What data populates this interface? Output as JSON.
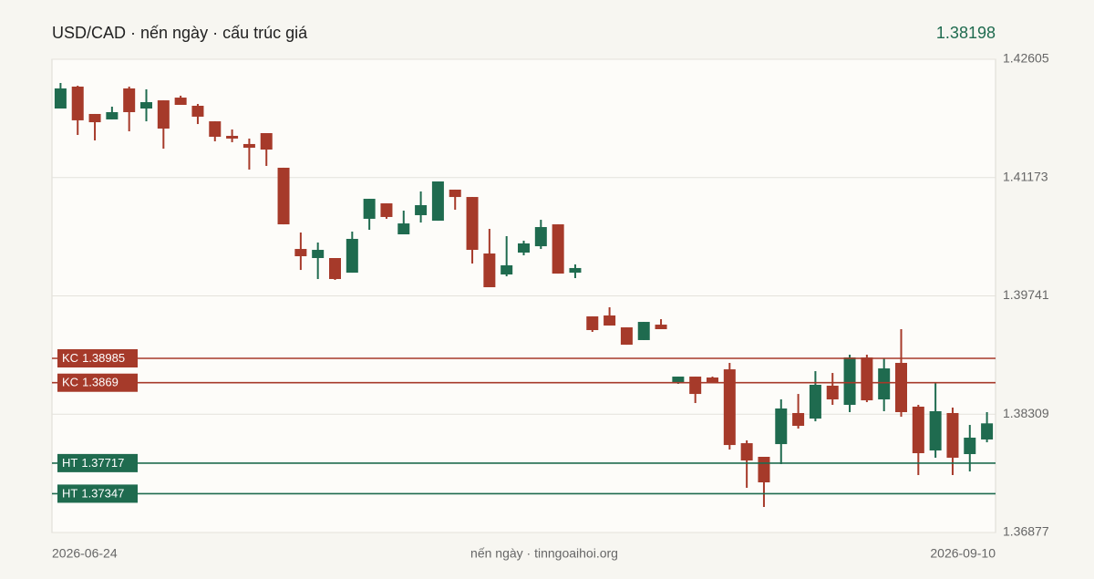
{
  "chart_data": {
    "type": "candlestick",
    "title": "USD/CAD · nến ngày · cấu trúc giá",
    "last_price": 1.38198,
    "footer": "nến ngày · tinngoaihoi.org",
    "up_color": "#1f6b4f",
    "down_color": "#a63a2a",
    "ylim": [
      1.36877,
      1.42605
    ],
    "yticks": [
      1.42605,
      1.41173,
      1.39741,
      1.38309,
      1.36877
    ],
    "grid": true,
    "categories": [
      "2026-06-24",
      null,
      null,
      null,
      null,
      null,
      null,
      null,
      null,
      null,
      null,
      null,
      null,
      null,
      null,
      null,
      null,
      null,
      null,
      null,
      null,
      null,
      null,
      null,
      null,
      null,
      null,
      null,
      null,
      null,
      null,
      null,
      null,
      null,
      null,
      null,
      null,
      null,
      null,
      null,
      null,
      null,
      null,
      null,
      null,
      null,
      null,
      null,
      null,
      null,
      null,
      null,
      null,
      null,
      "2026-09-10"
    ],
    "open": [
      1.42009,
      1.42274,
      1.41943,
      1.41877,
      1.42252,
      1.42009,
      1.42108,
      1.42141,
      1.42042,
      1.41854,
      1.41678,
      1.41579,
      1.41711,
      1.41292,
      1.40309,
      1.40199,
      1.40199,
      1.40022,
      1.40674,
      1.40861,
      1.40486,
      1.40718,
      1.40651,
      1.41027,
      1.40938,
      1.40254,
      1.4,
      1.40265,
      1.40342,
      1.40607,
      1.40022,
      1.39493,
      1.39504,
      1.3936,
      1.39206,
      1.39393,
      1.38698,
      1.38764,
      1.38753,
      1.38852,
      1.37958,
      1.37793,
      1.37947,
      1.38323,
      1.38256,
      1.38654,
      1.38422,
      1.38996,
      1.38488,
      1.3893,
      1.384,
      1.3787,
      1.38323,
      1.37826,
      1.38003
    ],
    "high": [
      1.42318,
      1.42285,
      1.41943,
      1.42031,
      1.42274,
      1.42241,
      1.42108,
      1.42164,
      1.42064,
      1.41854,
      1.41755,
      1.41645,
      1.41711,
      1.41292,
      1.40508,
      1.40387,
      1.40199,
      1.40519,
      1.40916,
      1.40861,
      1.40773,
      1.41005,
      1.41126,
      1.41027,
      1.40938,
      1.40552,
      1.40464,
      1.40409,
      1.40662,
      1.40607,
      1.40122,
      1.39493,
      1.39603,
      1.3936,
      1.39426,
      1.39459,
      1.38764,
      1.38764,
      1.38764,
      1.3893,
      1.37992,
      1.37793,
      1.38488,
      1.38554,
      1.3883,
      1.38808,
      1.39029,
      1.39029,
      1.38985,
      1.39338,
      1.38422,
      1.38687,
      1.38389,
      1.38179,
      1.38334
    ],
    "low": [
      1.42009,
      1.41689,
      1.41623,
      1.41877,
      1.41733,
      1.41854,
      1.41523,
      1.42053,
      1.41821,
      1.41612,
      1.41601,
      1.4127,
      1.41314,
      1.40607,
      1.40055,
      1.39945,
      1.39934,
      1.40022,
      1.40541,
      1.40674,
      1.40486,
      1.40629,
      1.40651,
      1.40784,
      1.40133,
      1.39846,
      1.39978,
      1.40232,
      1.40309,
      1.40011,
      1.39956,
      1.39305,
      1.39382,
      1.3915,
      1.39206,
      1.39338,
      1.38676,
      1.38444,
      1.38698,
      1.37881,
      1.37418,
      1.37186,
      1.37705,
      1.38135,
      1.38223,
      1.38422,
      1.38334,
      1.38455,
      1.38345,
      1.38278,
      1.37572,
      1.37782,
      1.37572,
      1.37616,
      1.37969
    ],
    "close": [
      1.42252,
      1.41866,
      1.41843,
      1.41965,
      1.41965,
      1.42086,
      1.41766,
      1.42053,
      1.4191,
      1.41667,
      1.41645,
      1.41534,
      1.41512,
      1.40607,
      1.40221,
      1.40298,
      1.39945,
      1.40431,
      1.40916,
      1.40696,
      1.40618,
      1.40839,
      1.41126,
      1.40938,
      1.40298,
      1.39846,
      1.40111,
      1.40376,
      1.40574,
      1.40011,
      1.40078,
      1.39327,
      1.39382,
      1.3915,
      1.39426,
      1.39338,
      1.38764,
      1.38554,
      1.38698,
      1.37936,
      1.37749,
      1.37484,
      1.38378,
      1.38168,
      1.38665,
      1.38488,
      1.38996,
      1.38477,
      1.38863,
      1.38334,
      1.37837,
      1.38345,
      1.37782,
      1.38025,
      1.38198
    ],
    "levels": [
      {
        "kind": "KC",
        "value": 1.38985,
        "color": "#a63a2a"
      },
      {
        "kind": "KC",
        "value": 1.3869,
        "color": "#a63a2a"
      },
      {
        "kind": "HT",
        "value": 1.37717,
        "color": "#1f6b4f"
      },
      {
        "kind": "HT",
        "value": 1.37347,
        "color": "#1f6b4f"
      }
    ]
  }
}
